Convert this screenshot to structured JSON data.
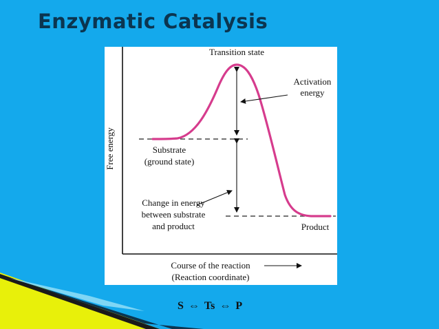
{
  "slide": {
    "title": "Enzymatic Catalysis"
  },
  "diagram": {
    "y_axis_label": "Free energy",
    "transition_label": "Transition state",
    "activation_label": [
      "Activation",
      "energy"
    ],
    "substrate_label": [
      "Substrate",
      "(ground state)"
    ],
    "change_label": [
      "Change in energy",
      "between substrate",
      "and product"
    ],
    "product_label": "Product",
    "x_axis_label": [
      "Course of the reaction",
      "(Reaction coordinate)"
    ],
    "curve_color": "#d63c8d"
  },
  "equation": {
    "substrate": "S",
    "arrow_1": "⇔",
    "transition": "Ts",
    "arrow_2": "⇔",
    "product": "P"
  }
}
